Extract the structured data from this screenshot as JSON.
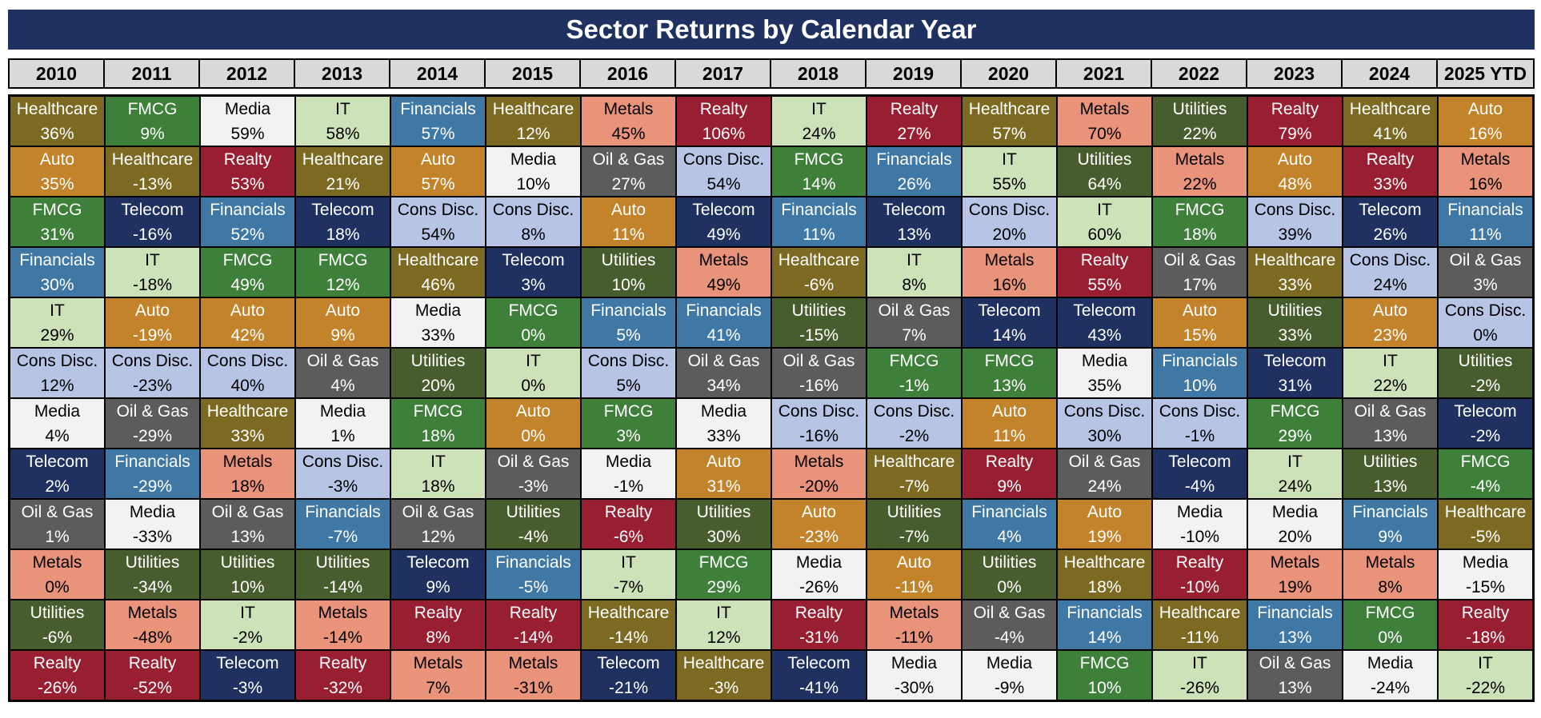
{
  "chart_data": {
    "type": "table",
    "title": "Sector Returns by Calendar Year",
    "years": [
      "2010",
      "2011",
      "2012",
      "2013",
      "2014",
      "2015",
      "2016",
      "2017",
      "2018",
      "2019",
      "2020",
      "2021",
      "2022",
      "2023",
      "2024",
      "2025 YTD"
    ],
    "sector_colors": {
      "Healthcare": {
        "bg": "#7d6a22",
        "fg": "#ffffff"
      },
      "Auto": {
        "bg": "#c2832b",
        "fg": "#ffffff"
      },
      "FMCG": {
        "bg": "#3e7f3a",
        "fg": "#ffffff"
      },
      "Financials": {
        "bg": "#3f78a5",
        "fg": "#ffffff"
      },
      "IT": {
        "bg": "#cde2b8",
        "fg": "#000000"
      },
      "Cons Disc.": {
        "bg": "#b7c4e5",
        "fg": "#000000"
      },
      "Media": {
        "bg": "#f2f2f2",
        "fg": "#000000"
      },
      "Telecom": {
        "bg": "#1f3160",
        "fg": "#ffffff"
      },
      "Oil & Gas": {
        "bg": "#5c5c5c",
        "fg": "#ffffff"
      },
      "Metals": {
        "bg": "#e8937a",
        "fg": "#000000"
      },
      "Utilities": {
        "bg": "#485d2e",
        "fg": "#ffffff"
      },
      "Realty": {
        "bg": "#971f31",
        "fg": "#ffffff"
      }
    },
    "columns": [
      [
        [
          "Healthcare",
          "36%"
        ],
        [
          "Auto",
          "35%"
        ],
        [
          "FMCG",
          "31%"
        ],
        [
          "Financials",
          "30%"
        ],
        [
          "IT",
          "29%"
        ],
        [
          "Cons Disc.",
          "12%"
        ],
        [
          "Media",
          "4%"
        ],
        [
          "Telecom",
          "2%"
        ],
        [
          "Oil & Gas",
          "1%"
        ],
        [
          "Metals",
          "0%"
        ],
        [
          "Utilities",
          "-6%"
        ],
        [
          "Realty",
          "-26%"
        ]
      ],
      [
        [
          "FMCG",
          "9%"
        ],
        [
          "Healthcare",
          "-13%"
        ],
        [
          "Telecom",
          "-16%"
        ],
        [
          "IT",
          "-18%"
        ],
        [
          "Auto",
          "-19%"
        ],
        [
          "Cons Disc.",
          "-23%"
        ],
        [
          "Oil & Gas",
          "-29%"
        ],
        [
          "Financials",
          "-29%"
        ],
        [
          "Media",
          "-33%"
        ],
        [
          "Utilities",
          "-34%"
        ],
        [
          "Metals",
          "-48%"
        ],
        [
          "Realty",
          "-52%"
        ]
      ],
      [
        [
          "Media",
          "59%"
        ],
        [
          "Realty",
          "53%"
        ],
        [
          "Financials",
          "52%"
        ],
        [
          "FMCG",
          "49%"
        ],
        [
          "Auto",
          "42%"
        ],
        [
          "Cons Disc.",
          "40%"
        ],
        [
          "Healthcare",
          "33%"
        ],
        [
          "Metals",
          "18%"
        ],
        [
          "Oil & Gas",
          "13%"
        ],
        [
          "Utilities",
          "10%"
        ],
        [
          "IT",
          "-2%"
        ],
        [
          "Telecom",
          "-3%"
        ]
      ],
      [
        [
          "IT",
          "58%"
        ],
        [
          "Healthcare",
          "21%"
        ],
        [
          "Telecom",
          "18%"
        ],
        [
          "FMCG",
          "12%"
        ],
        [
          "Auto",
          "9%"
        ],
        [
          "Oil & Gas",
          "4%"
        ],
        [
          "Media",
          "1%"
        ],
        [
          "Cons Disc.",
          "-3%"
        ],
        [
          "Financials",
          "-7%"
        ],
        [
          "Utilities",
          "-14%"
        ],
        [
          "Metals",
          "-14%"
        ],
        [
          "Realty",
          "-32%"
        ]
      ],
      [
        [
          "Financials",
          "57%"
        ],
        [
          "Auto",
          "57%"
        ],
        [
          "Cons Disc.",
          "54%"
        ],
        [
          "Healthcare",
          "46%"
        ],
        [
          "Media",
          "33%"
        ],
        [
          "Utilities",
          "20%"
        ],
        [
          "FMCG",
          "18%"
        ],
        [
          "IT",
          "18%"
        ],
        [
          "Oil & Gas",
          "12%"
        ],
        [
          "Telecom",
          "9%"
        ],
        [
          "Realty",
          "8%"
        ],
        [
          "Metals",
          "7%"
        ]
      ],
      [
        [
          "Healthcare",
          "12%"
        ],
        [
          "Media",
          "10%"
        ],
        [
          "Cons Disc.",
          "8%"
        ],
        [
          "Telecom",
          "3%"
        ],
        [
          "FMCG",
          "0%"
        ],
        [
          "IT",
          "0%"
        ],
        [
          "Auto",
          "0%"
        ],
        [
          "Oil & Gas",
          "-3%"
        ],
        [
          "Utilities",
          "-4%"
        ],
        [
          "Financials",
          "-5%"
        ],
        [
          "Realty",
          "-14%"
        ],
        [
          "Metals",
          "-31%"
        ]
      ],
      [
        [
          "Metals",
          "45%"
        ],
        [
          "Oil & Gas",
          "27%"
        ],
        [
          "Auto",
          "11%"
        ],
        [
          "Utilities",
          "10%"
        ],
        [
          "Financials",
          "5%"
        ],
        [
          "Cons Disc.",
          "5%"
        ],
        [
          "FMCG",
          "3%"
        ],
        [
          "Media",
          "-1%"
        ],
        [
          "Realty",
          "-6%"
        ],
        [
          "IT",
          "-7%"
        ],
        [
          "Healthcare",
          "-14%"
        ],
        [
          "Telecom",
          "-21%"
        ]
      ],
      [
        [
          "Realty",
          "106%"
        ],
        [
          "Cons Disc.",
          "54%"
        ],
        [
          "Telecom",
          "49%"
        ],
        [
          "Metals",
          "49%"
        ],
        [
          "Financials",
          "41%"
        ],
        [
          "Oil & Gas",
          "34%"
        ],
        [
          "Media",
          "33%"
        ],
        [
          "Auto",
          "31%"
        ],
        [
          "Utilities",
          "30%"
        ],
        [
          "FMCG",
          "29%"
        ],
        [
          "IT",
          "12%"
        ],
        [
          "Healthcare",
          "-3%"
        ]
      ],
      [
        [
          "IT",
          "24%"
        ],
        [
          "FMCG",
          "14%"
        ],
        [
          "Financials",
          "11%"
        ],
        [
          "Healthcare",
          "-6%"
        ],
        [
          "Utilities",
          "-15%"
        ],
        [
          "Oil & Gas",
          "-16%"
        ],
        [
          "Cons Disc.",
          "-16%"
        ],
        [
          "Metals",
          "-20%"
        ],
        [
          "Auto",
          "-23%"
        ],
        [
          "Media",
          "-26%"
        ],
        [
          "Realty",
          "-31%"
        ],
        [
          "Telecom",
          "-41%"
        ]
      ],
      [
        [
          "Realty",
          "27%"
        ],
        [
          "Financials",
          "26%"
        ],
        [
          "Telecom",
          "13%"
        ],
        [
          "IT",
          "8%"
        ],
        [
          "Oil & Gas",
          "7%"
        ],
        [
          "FMCG",
          "-1%"
        ],
        [
          "Cons Disc.",
          "-2%"
        ],
        [
          "Healthcare",
          "-7%"
        ],
        [
          "Utilities",
          "-7%"
        ],
        [
          "Auto",
          "-11%"
        ],
        [
          "Metals",
          "-11%"
        ],
        [
          "Media",
          "-30%"
        ]
      ],
      [
        [
          "Healthcare",
          "57%"
        ],
        [
          "IT",
          "55%"
        ],
        [
          "Cons Disc.",
          "20%"
        ],
        [
          "Metals",
          "16%"
        ],
        [
          "Telecom",
          "14%"
        ],
        [
          "FMCG",
          "13%"
        ],
        [
          "Auto",
          "11%"
        ],
        [
          "Realty",
          "9%"
        ],
        [
          "Financials",
          "4%"
        ],
        [
          "Utilities",
          "0%"
        ],
        [
          "Oil & Gas",
          "-4%"
        ],
        [
          "Media",
          "-9%"
        ]
      ],
      [
        [
          "Metals",
          "70%"
        ],
        [
          "Utilities",
          "64%"
        ],
        [
          "IT",
          "60%"
        ],
        [
          "Realty",
          "55%"
        ],
        [
          "Telecom",
          "43%"
        ],
        [
          "Media",
          "35%"
        ],
        [
          "Cons Disc.",
          "30%"
        ],
        [
          "Oil & Gas",
          "24%"
        ],
        [
          "Auto",
          "19%"
        ],
        [
          "Healthcare",
          "18%"
        ],
        [
          "Financials",
          "14%"
        ],
        [
          "FMCG",
          "10%"
        ]
      ],
      [
        [
          "Utilities",
          "22%"
        ],
        [
          "Metals",
          "22%"
        ],
        [
          "FMCG",
          "18%"
        ],
        [
          "Oil & Gas",
          "17%"
        ],
        [
          "Auto",
          "15%"
        ],
        [
          "Financials",
          "10%"
        ],
        [
          "Cons Disc.",
          "-1%"
        ],
        [
          "Telecom",
          "-4%"
        ],
        [
          "Media",
          "-10%"
        ],
        [
          "Realty",
          "-10%"
        ],
        [
          "Healthcare",
          "-11%"
        ],
        [
          "IT",
          "-26%"
        ]
      ],
      [
        [
          "Realty",
          "79%"
        ],
        [
          "Auto",
          "48%"
        ],
        [
          "Cons Disc.",
          "39%"
        ],
        [
          "Healthcare",
          "33%"
        ],
        [
          "Utilities",
          "33%"
        ],
        [
          "Telecom",
          "31%"
        ],
        [
          "FMCG",
          "29%"
        ],
        [
          "IT",
          "24%"
        ],
        [
          "Media",
          "20%"
        ],
        [
          "Metals",
          "19%"
        ],
        [
          "Financials",
          "13%"
        ],
        [
          "Oil & Gas",
          "13%"
        ]
      ],
      [
        [
          "Healthcare",
          "41%"
        ],
        [
          "Realty",
          "33%"
        ],
        [
          "Telecom",
          "26%"
        ],
        [
          "Cons Disc.",
          "24%"
        ],
        [
          "Auto",
          "23%"
        ],
        [
          "IT",
          "22%"
        ],
        [
          "Oil & Gas",
          "13%"
        ],
        [
          "Utilities",
          "13%"
        ],
        [
          "Financials",
          "9%"
        ],
        [
          "Metals",
          "8%"
        ],
        [
          "FMCG",
          "0%"
        ],
        [
          "Media",
          "-24%"
        ]
      ],
      [
        [
          "Auto",
          "16%"
        ],
        [
          "Metals",
          "16%"
        ],
        [
          "Financials",
          "11%"
        ],
        [
          "Oil & Gas",
          "3%"
        ],
        [
          "Cons Disc.",
          "0%"
        ],
        [
          "Utilities",
          "-2%"
        ],
        [
          "Telecom",
          "-2%"
        ],
        [
          "FMCG",
          "-4%"
        ],
        [
          "Healthcare",
          "-5%"
        ],
        [
          "Media",
          "-15%"
        ],
        [
          "Realty",
          "-18%"
        ],
        [
          "IT",
          "-22%"
        ]
      ]
    ]
  }
}
